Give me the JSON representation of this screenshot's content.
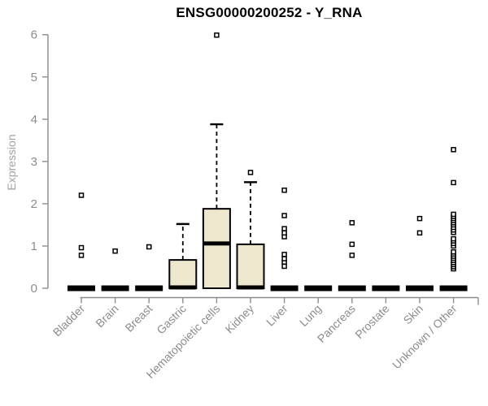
{
  "chart_data": {
    "type": "boxplot",
    "title": "ENSG00000200252 - Y_RNA",
    "ylabel": "Expression",
    "xlabel": "",
    "ylim": [
      0,
      6
    ],
    "yticks": [
      0,
      1,
      2,
      3,
      4,
      5,
      6
    ],
    "grid": false,
    "legend": "none",
    "categories": [
      "Bladder",
      "Brain",
      "Breast",
      "Gastric",
      "Hematopoietic cells",
      "Kidney",
      "Liver",
      "Lung",
      "Pancreas",
      "Prostate",
      "Skin",
      "Unknown / Other"
    ],
    "boxes": [
      {
        "category": "Bladder",
        "q1": 0,
        "median": 0,
        "q3": 0,
        "whisker_low": 0,
        "whisker_high": 0,
        "outliers": [
          0.78,
          0.96,
          2.2
        ]
      },
      {
        "category": "Brain",
        "q1": 0,
        "median": 0,
        "q3": 0,
        "whisker_low": 0,
        "whisker_high": 0,
        "outliers": [
          0.88
        ]
      },
      {
        "category": "Breast",
        "q1": 0,
        "median": 0,
        "q3": 0,
        "whisker_low": 0,
        "whisker_high": 0,
        "outliers": [
          0.98
        ]
      },
      {
        "category": "Gastric",
        "q1": 0,
        "median": 0.02,
        "q3": 0.67,
        "whisker_low": 0,
        "whisker_high": 1.52,
        "outliers": []
      },
      {
        "category": "Hematopoietic cells",
        "q1": 0,
        "median": 1.06,
        "q3": 1.88,
        "whisker_low": 0,
        "whisker_high": 3.88,
        "outliers": [
          5.99
        ]
      },
      {
        "category": "Kidney",
        "q1": 0,
        "median": 0.02,
        "q3": 1.04,
        "whisker_low": 0,
        "whisker_high": 2.51,
        "outliers": [
          2.74
        ]
      },
      {
        "category": "Liver",
        "q1": 0,
        "median": 0,
        "q3": 0,
        "whisker_low": 0,
        "whisker_high": 0,
        "outliers": [
          0.52,
          0.62,
          0.7,
          0.8,
          1.22,
          1.31,
          1.41,
          1.72,
          2.32
        ]
      },
      {
        "category": "Lung",
        "q1": 0,
        "median": 0,
        "q3": 0,
        "whisker_low": 0,
        "whisker_high": 0,
        "outliers": []
      },
      {
        "category": "Pancreas",
        "q1": 0,
        "median": 0,
        "q3": 0,
        "whisker_low": 0,
        "whisker_high": 0,
        "outliers": [
          0.78,
          1.04,
          1.55
        ]
      },
      {
        "category": "Prostate",
        "q1": 0,
        "median": 0,
        "q3": 0,
        "whisker_low": 0,
        "whisker_high": 0,
        "outliers": []
      },
      {
        "category": "Skin",
        "q1": 0,
        "median": 0,
        "q3": 0,
        "whisker_low": 0,
        "whisker_high": 0,
        "outliers": [
          1.31,
          1.65
        ]
      },
      {
        "category": "Unknown / Other",
        "q1": 0,
        "median": 0,
        "q3": 0,
        "whisker_low": 0,
        "whisker_high": 0,
        "outliers": [
          0.46,
          0.51,
          0.56,
          0.61,
          0.66,
          0.71,
          0.76,
          0.81,
          0.86,
          1.0,
          1.06,
          1.12,
          1.17,
          1.32,
          1.38,
          1.44,
          1.5,
          1.55,
          1.6,
          1.65,
          1.7,
          1.75,
          2.5,
          3.28
        ]
      }
    ],
    "colors": {
      "box_fill": "#ECE7CD",
      "box_border": "#000000",
      "median": "#000000",
      "whisker": "#000000",
      "outlier_fill": "#FFFFFF",
      "outlier_stroke": "#000000",
      "axis": "#8C8C8C",
      "tick_label": "#8C8C8C",
      "axis_title": "#A3A3A3",
      "title": "#000000",
      "background": "#FFFFFF"
    }
  }
}
